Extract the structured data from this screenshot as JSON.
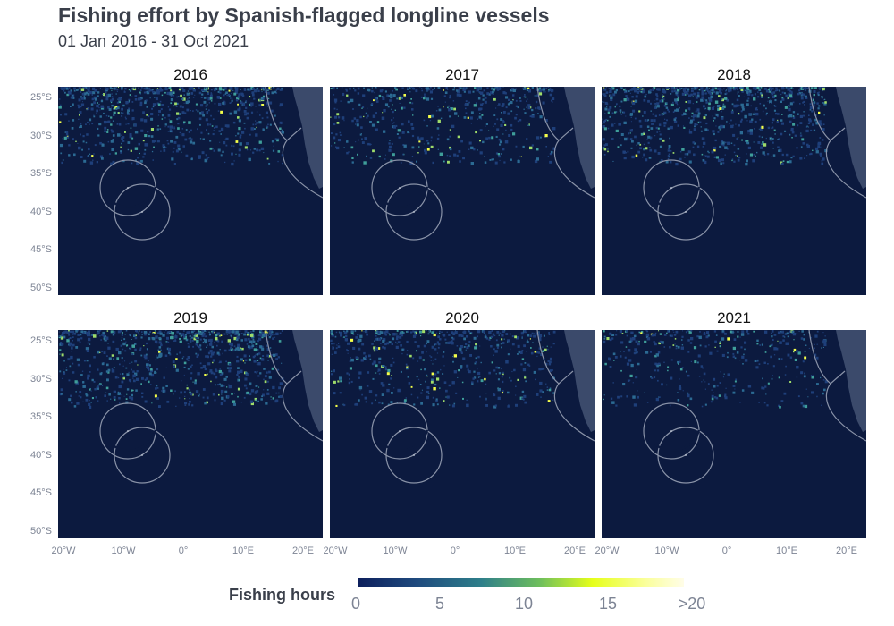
{
  "header": {
    "title": "Fishing effort by Spanish-flagged longline vessels",
    "subtitle": "01 Jan 2016 - 31 Oct 2021"
  },
  "panels": [
    {
      "year": "2016",
      "intensity": 0.9
    },
    {
      "year": "2017",
      "intensity": 0.6
    },
    {
      "year": "2018",
      "intensity": 1.0
    },
    {
      "year": "2019",
      "intensity": 0.95
    },
    {
      "year": "2020",
      "intensity": 0.65
    },
    {
      "year": "2021",
      "intensity": 0.45
    }
  ],
  "axes": {
    "y_labels": [
      "25°S",
      "30°S",
      "35°S",
      "40°S",
      "45°S",
      "50°S"
    ],
    "x_labels": [
      "20°W",
      "10°W",
      "0°",
      "10°E",
      "20°E"
    ]
  },
  "legend": {
    "title": "Fishing hours",
    "ticks": [
      "0",
      "5",
      "10",
      "15",
      ">20"
    ],
    "colors": [
      "#0d1f5c",
      "#2e7f8a",
      "#6fbf5c",
      "#e6ff1a",
      "#fffde8"
    ]
  },
  "map_colors": {
    "ocean": "#0c1a3f",
    "land": "#3b4a6b",
    "boundary": "#8a93a8"
  }
}
